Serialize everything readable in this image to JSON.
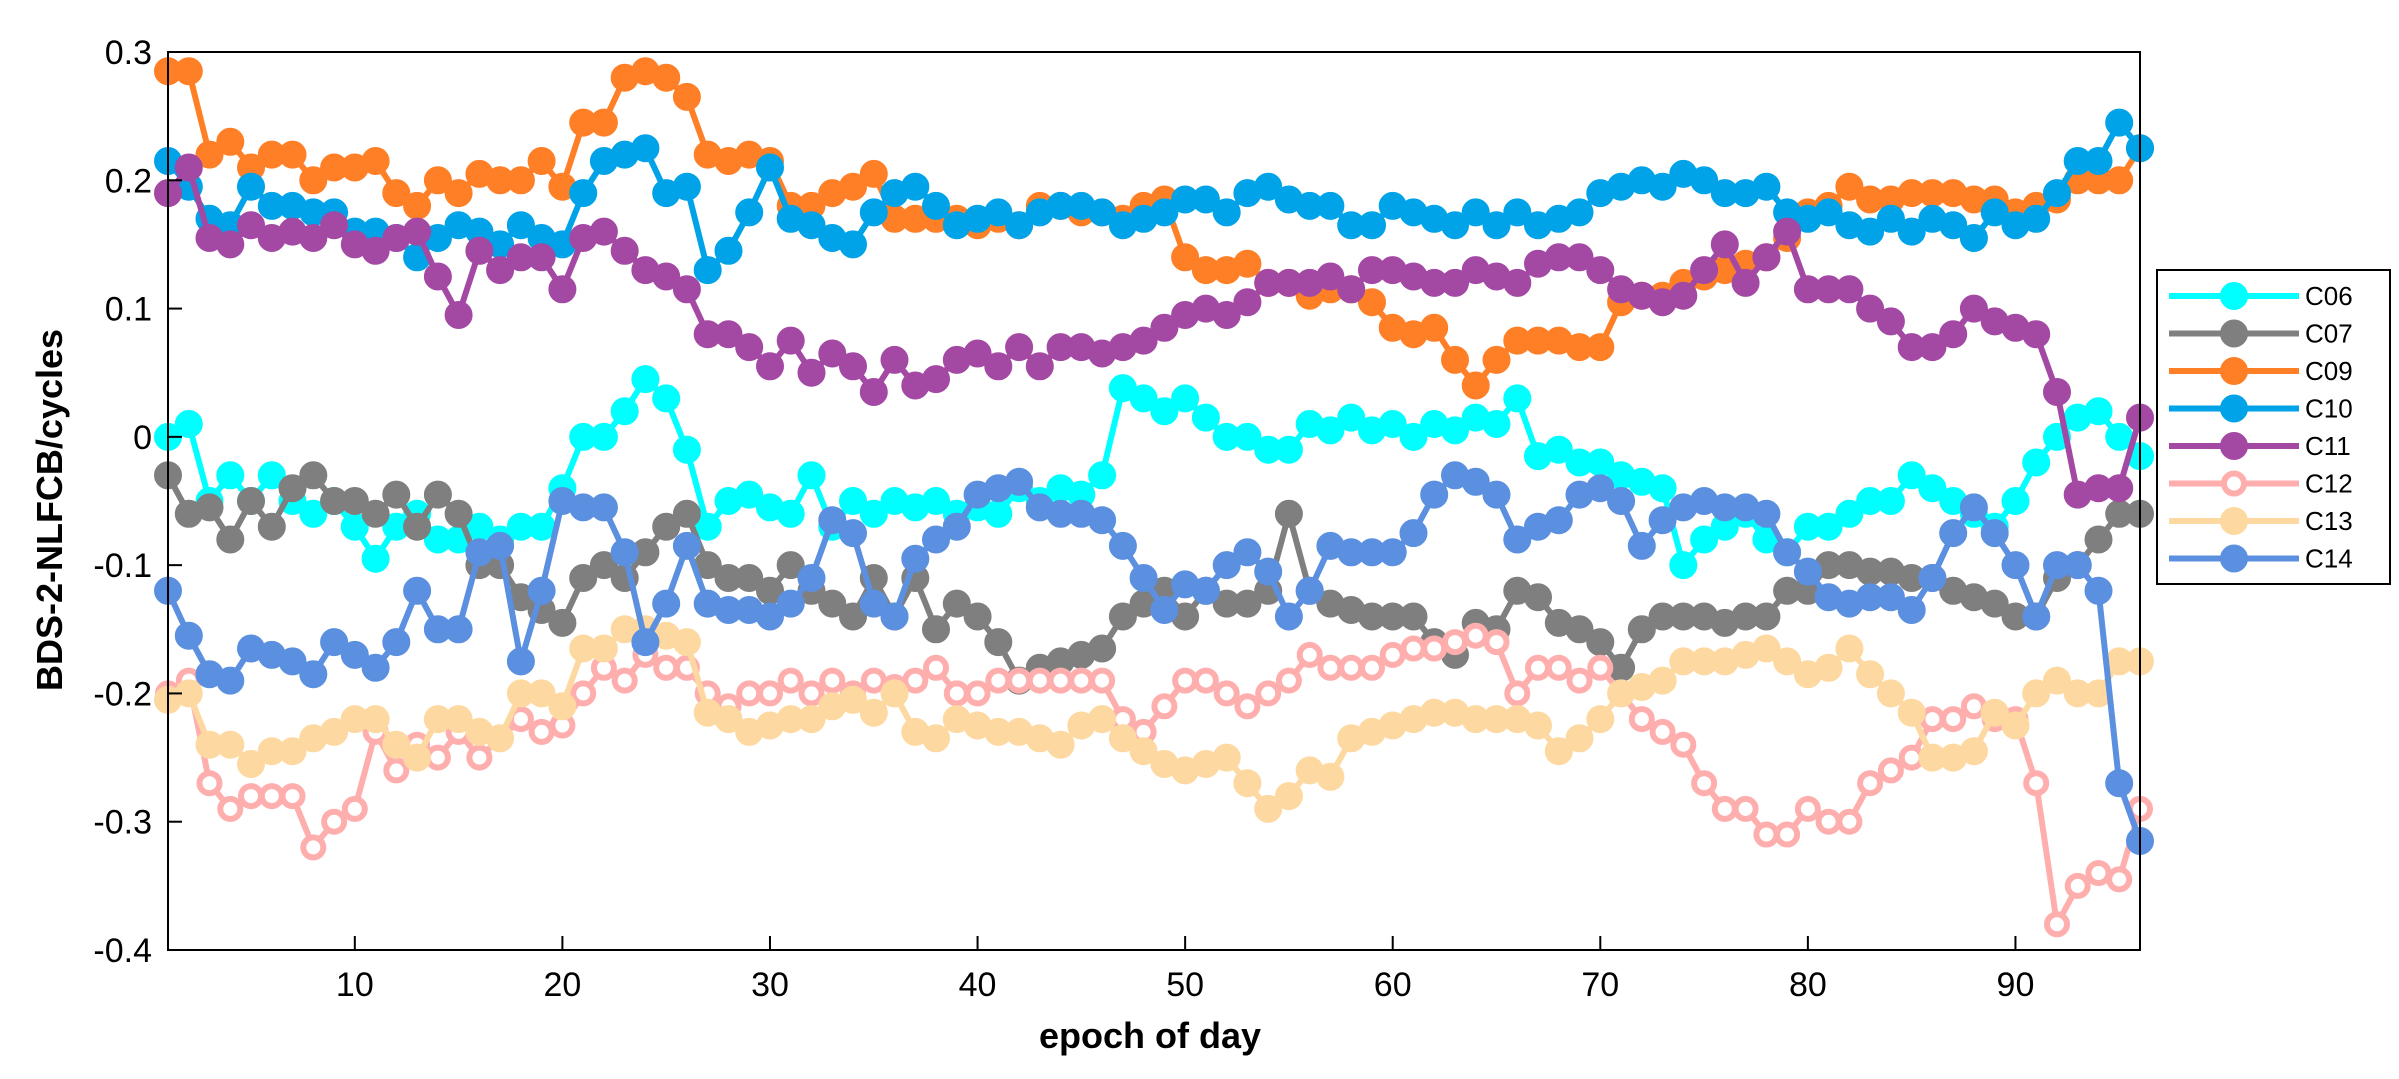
{
  "chart_data": {
    "type": "line",
    "title": "",
    "xlabel": "epoch of day",
    "ylabel": "BDS-2-NLFCB/cycles",
    "xlim": [
      1,
      96
    ],
    "ylim": [
      -0.4,
      0.3
    ],
    "xticks": [
      10,
      20,
      30,
      40,
      50,
      60,
      70,
      80,
      90
    ],
    "yticks": [
      0.3,
      0.2,
      0.1,
      0,
      -0.1,
      -0.2,
      -0.3,
      -0.4
    ],
    "ytick_labels": [
      "0.3",
      "0.2",
      "0.1",
      "0",
      "-0.1",
      "-0.2",
      "-0.3",
      "-0.4"
    ],
    "grid": false,
    "legend_position": "right",
    "series": [
      {
        "name": "C06",
        "color": "#00FFFF",
        "marker": "filled",
        "values": [
          0.0,
          0.01,
          -0.05,
          -0.03,
          -0.05,
          -0.03,
          -0.05,
          -0.06,
          -0.05,
          -0.07,
          -0.095,
          -0.07,
          -0.06,
          -0.08,
          -0.08,
          -0.07,
          -0.08,
          -0.07,
          -0.07,
          -0.04,
          0.0,
          0.0,
          0.02,
          0.045,
          0.03,
          -0.01,
          -0.07,
          -0.05,
          -0.045,
          -0.055,
          -0.06,
          -0.03,
          -0.07,
          -0.05,
          -0.06,
          -0.05,
          -0.055,
          -0.05,
          -0.06,
          -0.055,
          -0.06,
          -0.04,
          -0.05,
          -0.04,
          -0.045,
          -0.03,
          0.038,
          0.03,
          0.02,
          0.03,
          0.015,
          0.0,
          0.0,
          -0.01,
          -0.01,
          0.01,
          0.005,
          0.015,
          0.005,
          0.01,
          0.0,
          0.01,
          0.005,
          0.015,
          0.01,
          0.03,
          -0.015,
          -0.01,
          -0.02,
          -0.02,
          -0.03,
          -0.035,
          -0.04,
          -0.1,
          -0.08,
          -0.07,
          -0.06,
          -0.08,
          -0.09,
          -0.07,
          -0.07,
          -0.06,
          -0.05,
          -0.05,
          -0.03,
          -0.04,
          -0.05,
          -0.06,
          -0.07,
          -0.05,
          -0.02,
          0.0,
          0.015,
          0.02,
          0.0,
          -0.015
        ]
      },
      {
        "name": "C07",
        "color": "#7F7F7F",
        "marker": "filled",
        "values": [
          -0.03,
          -0.06,
          -0.055,
          -0.08,
          -0.05,
          -0.07,
          -0.04,
          -0.03,
          -0.05,
          -0.05,
          -0.06,
          -0.045,
          -0.07,
          -0.045,
          -0.06,
          -0.1,
          -0.1,
          -0.125,
          -0.135,
          -0.145,
          -0.11,
          -0.1,
          -0.11,
          -0.09,
          -0.07,
          -0.06,
          -0.1,
          -0.11,
          -0.11,
          -0.12,
          -0.1,
          -0.12,
          -0.13,
          -0.14,
          -0.11,
          -0.14,
          -0.11,
          -0.15,
          -0.13,
          -0.14,
          -0.16,
          -0.19,
          -0.18,
          -0.175,
          -0.17,
          -0.165,
          -0.14,
          -0.13,
          -0.12,
          -0.14,
          -0.12,
          -0.13,
          -0.13,
          -0.12,
          -0.06,
          -0.12,
          -0.13,
          -0.135,
          -0.14,
          -0.14,
          -0.14,
          -0.16,
          -0.17,
          -0.145,
          -0.15,
          -0.12,
          -0.125,
          -0.145,
          -0.15,
          -0.16,
          -0.18,
          -0.15,
          -0.14,
          -0.14,
          -0.14,
          -0.145,
          -0.14,
          -0.14,
          -0.12,
          -0.12,
          -0.1,
          -0.1,
          -0.105,
          -0.105,
          -0.11,
          -0.11,
          -0.12,
          -0.125,
          -0.13,
          -0.14,
          -0.14,
          -0.11,
          -0.1,
          -0.08,
          -0.06,
          -0.06
        ]
      },
      {
        "name": "C09",
        "color": "#FF7F27",
        "marker": "filled",
        "values": [
          0.285,
          0.285,
          0.22,
          0.23,
          0.21,
          0.22,
          0.22,
          0.2,
          0.21,
          0.21,
          0.215,
          0.19,
          0.18,
          0.2,
          0.19,
          0.205,
          0.2,
          0.2,
          0.215,
          0.195,
          0.245,
          0.245,
          0.28,
          0.285,
          0.28,
          0.265,
          0.22,
          0.215,
          0.22,
          0.215,
          0.18,
          0.18,
          0.19,
          0.195,
          0.205,
          0.17,
          0.17,
          0.17,
          0.17,
          0.165,
          0.17,
          0.165,
          0.18,
          0.18,
          0.175,
          0.175,
          0.17,
          0.18,
          0.185,
          0.14,
          0.13,
          0.13,
          0.135,
          0.12,
          0.12,
          0.11,
          0.115,
          0.115,
          0.105,
          0.085,
          0.08,
          0.085,
          0.06,
          0.04,
          0.06,
          0.075,
          0.075,
          0.075,
          0.07,
          0.07,
          0.105,
          0.11,
          0.11,
          0.12,
          0.125,
          0.13,
          0.135,
          0.14,
          0.155,
          0.175,
          0.18,
          0.195,
          0.185,
          0.185,
          0.19,
          0.19,
          0.19,
          0.185,
          0.185,
          0.175,
          0.18,
          0.185,
          0.2,
          0.2,
          0.2,
          0.225
        ]
      },
      {
        "name": "C10",
        "color": "#00A2E8",
        "marker": "filled",
        "values": [
          0.215,
          0.195,
          0.17,
          0.165,
          0.195,
          0.18,
          0.18,
          0.175,
          0.175,
          0.16,
          0.16,
          0.155,
          0.14,
          0.155,
          0.165,
          0.16,
          0.15,
          0.165,
          0.155,
          0.15,
          0.19,
          0.215,
          0.22,
          0.225,
          0.19,
          0.195,
          0.13,
          0.145,
          0.175,
          0.21,
          0.17,
          0.165,
          0.155,
          0.15,
          0.175,
          0.19,
          0.195,
          0.18,
          0.165,
          0.17,
          0.175,
          0.165,
          0.175,
          0.18,
          0.18,
          0.175,
          0.165,
          0.17,
          0.175,
          0.185,
          0.185,
          0.175,
          0.19,
          0.195,
          0.185,
          0.18,
          0.18,
          0.165,
          0.165,
          0.18,
          0.175,
          0.17,
          0.165,
          0.175,
          0.165,
          0.175,
          0.165,
          0.17,
          0.175,
          0.19,
          0.195,
          0.2,
          0.195,
          0.205,
          0.2,
          0.19,
          0.19,
          0.195,
          0.175,
          0.17,
          0.175,
          0.165,
          0.16,
          0.17,
          0.16,
          0.17,
          0.165,
          0.155,
          0.175,
          0.165,
          0.17,
          0.19,
          0.215,
          0.215,
          0.245,
          0.225
        ]
      },
      {
        "name": "C11",
        "color": "#A349A4",
        "marker": "filled",
        "values": [
          0.19,
          0.21,
          0.155,
          0.15,
          0.165,
          0.155,
          0.16,
          0.155,
          0.165,
          0.15,
          0.145,
          0.155,
          0.16,
          0.125,
          0.095,
          0.145,
          0.13,
          0.14,
          0.14,
          0.115,
          0.155,
          0.16,
          0.145,
          0.13,
          0.125,
          0.115,
          0.08,
          0.08,
          0.07,
          0.055,
          0.075,
          0.05,
          0.065,
          0.055,
          0.035,
          0.06,
          0.04,
          0.045,
          0.06,
          0.065,
          0.055,
          0.07,
          0.055,
          0.07,
          0.07,
          0.065,
          0.07,
          0.075,
          0.085,
          0.095,
          0.1,
          0.095,
          0.105,
          0.12,
          0.12,
          0.12,
          0.125,
          0.115,
          0.13,
          0.13,
          0.125,
          0.12,
          0.12,
          0.13,
          0.125,
          0.12,
          0.135,
          0.14,
          0.14,
          0.13,
          0.115,
          0.11,
          0.105,
          0.11,
          0.13,
          0.15,
          0.12,
          0.14,
          0.16,
          0.115,
          0.115,
          0.115,
          0.1,
          0.09,
          0.07,
          0.07,
          0.08,
          0.1,
          0.09,
          0.085,
          0.08,
          0.035,
          -0.045,
          -0.04,
          -0.04,
          0.015
        ]
      },
      {
        "name": "C12",
        "color": "#FFAEAE",
        "marker": "open",
        "values": [
          -0.2,
          -0.19,
          -0.27,
          -0.29,
          -0.28,
          -0.28,
          -0.28,
          -0.32,
          -0.3,
          -0.29,
          -0.23,
          -0.26,
          -0.24,
          -0.25,
          -0.23,
          -0.25,
          -0.235,
          -0.22,
          -0.23,
          -0.225,
          -0.2,
          -0.18,
          -0.19,
          -0.17,
          -0.18,
          -0.18,
          -0.2,
          -0.21,
          -0.2,
          -0.2,
          -0.19,
          -0.2,
          -0.19,
          -0.2,
          -0.19,
          -0.195,
          -0.19,
          -0.18,
          -0.2,
          -0.2,
          -0.19,
          -0.19,
          -0.19,
          -0.19,
          -0.19,
          -0.19,
          -0.22,
          -0.23,
          -0.21,
          -0.19,
          -0.19,
          -0.2,
          -0.21,
          -0.2,
          -0.19,
          -0.17,
          -0.18,
          -0.18,
          -0.18,
          -0.17,
          -0.165,
          -0.165,
          -0.16,
          -0.155,
          -0.16,
          -0.2,
          -0.18,
          -0.18,
          -0.19,
          -0.18,
          -0.2,
          -0.22,
          -0.23,
          -0.24,
          -0.27,
          -0.29,
          -0.29,
          -0.31,
          -0.31,
          -0.29,
          -0.3,
          -0.3,
          -0.27,
          -0.26,
          -0.25,
          -0.22,
          -0.22,
          -0.21,
          -0.22,
          -0.22,
          -0.27,
          -0.38,
          -0.35,
          -0.34,
          -0.345,
          -0.29
        ]
      },
      {
        "name": "C13",
        "color": "#FDD9A1",
        "marker": "filled",
        "values": [
          -0.205,
          -0.2,
          -0.24,
          -0.24,
          -0.255,
          -0.245,
          -0.245,
          -0.235,
          -0.23,
          -0.22,
          -0.22,
          -0.24,
          -0.25,
          -0.22,
          -0.22,
          -0.23,
          -0.235,
          -0.2,
          -0.2,
          -0.21,
          -0.165,
          -0.165,
          -0.15,
          -0.15,
          -0.155,
          -0.16,
          -0.215,
          -0.22,
          -0.23,
          -0.225,
          -0.22,
          -0.22,
          -0.21,
          -0.205,
          -0.215,
          -0.2,
          -0.23,
          -0.235,
          -0.22,
          -0.225,
          -0.23,
          -0.23,
          -0.235,
          -0.24,
          -0.225,
          -0.22,
          -0.235,
          -0.245,
          -0.255,
          -0.26,
          -0.255,
          -0.25,
          -0.27,
          -0.29,
          -0.28,
          -0.26,
          -0.265,
          -0.235,
          -0.23,
          -0.225,
          -0.22,
          -0.215,
          -0.215,
          -0.22,
          -0.22,
          -0.22,
          -0.225,
          -0.245,
          -0.235,
          -0.22,
          -0.2,
          -0.195,
          -0.19,
          -0.175,
          -0.175,
          -0.175,
          -0.17,
          -0.165,
          -0.175,
          -0.185,
          -0.18,
          -0.165,
          -0.185,
          -0.2,
          -0.215,
          -0.25,
          -0.25,
          -0.245,
          -0.215,
          -0.225,
          -0.2,
          -0.19,
          -0.2,
          -0.2,
          -0.175,
          -0.175
        ]
      },
      {
        "name": "C14",
        "color": "#5B8FDF",
        "marker": "filled",
        "values": [
          -0.12,
          -0.155,
          -0.185,
          -0.19,
          -0.165,
          -0.17,
          -0.175,
          -0.185,
          -0.16,
          -0.17,
          -0.18,
          -0.16,
          -0.12,
          -0.15,
          -0.15,
          -0.09,
          -0.085,
          -0.175,
          -0.12,
          -0.05,
          -0.055,
          -0.055,
          -0.09,
          -0.16,
          -0.13,
          -0.085,
          -0.13,
          -0.135,
          -0.135,
          -0.14,
          -0.13,
          -0.11,
          -0.065,
          -0.075,
          -0.13,
          -0.14,
          -0.095,
          -0.08,
          -0.07,
          -0.045,
          -0.04,
          -0.035,
          -0.055,
          -0.06,
          -0.06,
          -0.065,
          -0.085,
          -0.11,
          -0.135,
          -0.115,
          -0.12,
          -0.1,
          -0.09,
          -0.105,
          -0.14,
          -0.12,
          -0.085,
          -0.09,
          -0.09,
          -0.09,
          -0.075,
          -0.045,
          -0.03,
          -0.035,
          -0.045,
          -0.08,
          -0.07,
          -0.065,
          -0.045,
          -0.04,
          -0.05,
          -0.085,
          -0.065,
          -0.055,
          -0.05,
          -0.055,
          -0.055,
          -0.06,
          -0.09,
          -0.105,
          -0.125,
          -0.13,
          -0.125,
          -0.125,
          -0.135,
          -0.11,
          -0.075,
          -0.055,
          -0.075,
          -0.1,
          -0.14,
          -0.1,
          -0.1,
          -0.12,
          -0.27,
          -0.315
        ]
      }
    ]
  }
}
